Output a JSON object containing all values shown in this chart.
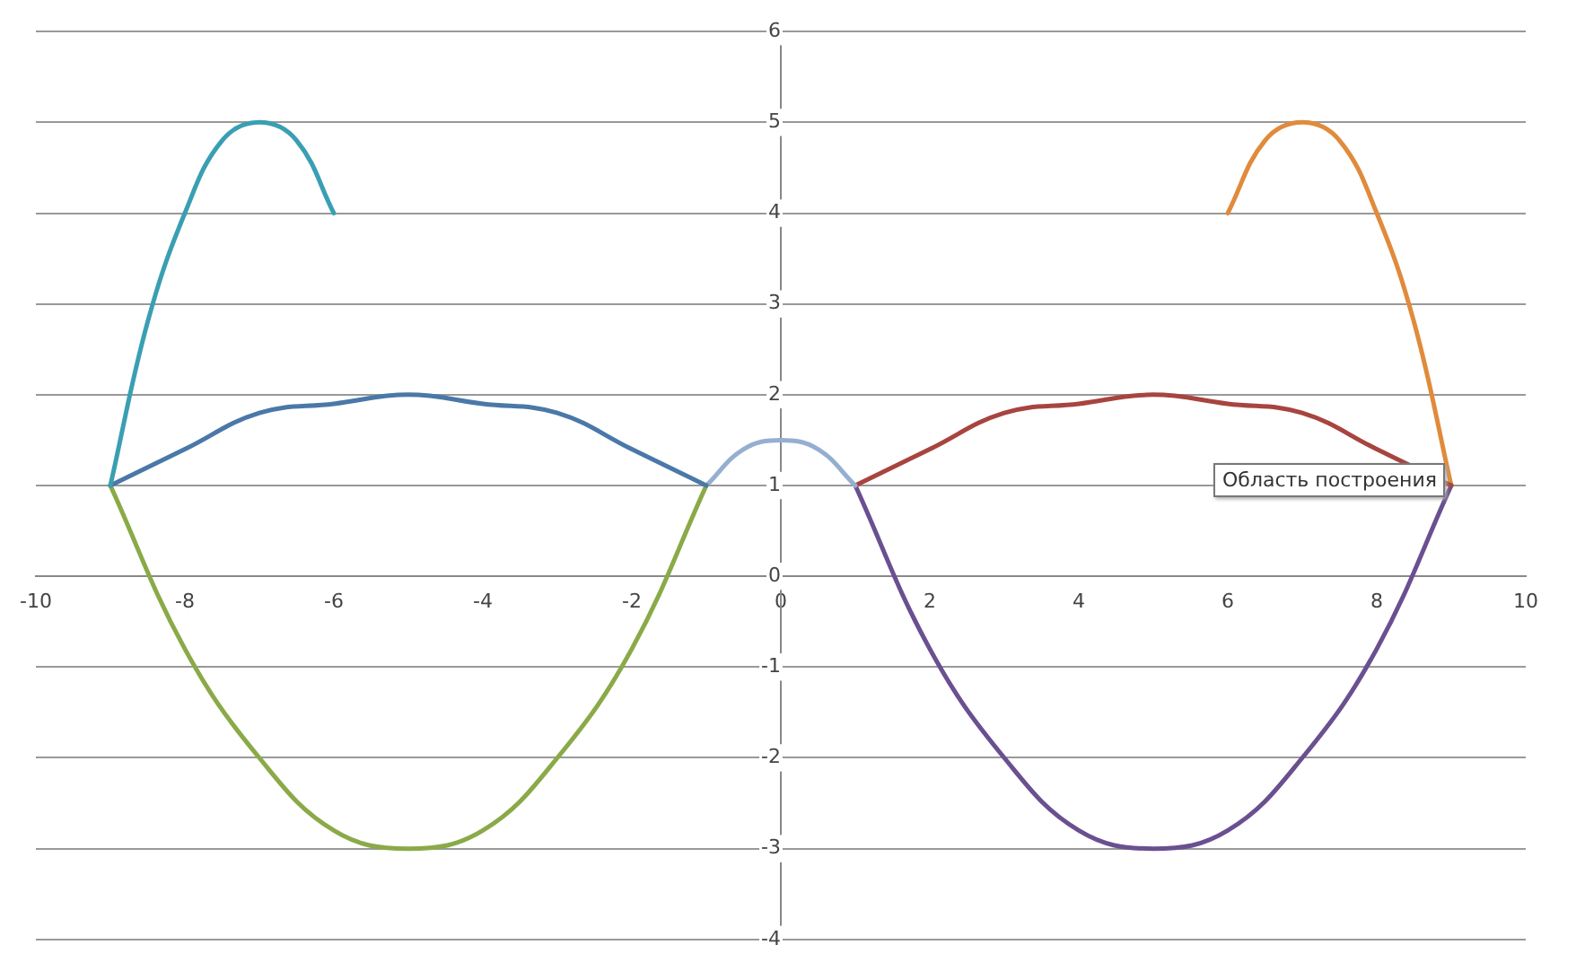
{
  "chart_data": {
    "type": "line",
    "xlim": [
      -10,
      10
    ],
    "xticks": [
      -10,
      -8,
      -6,
      -4,
      -2,
      0,
      2,
      4,
      6,
      8,
      10
    ],
    "ylim": [
      -4,
      6
    ],
    "yticks": [
      -4,
      -3,
      -2,
      -1,
      0,
      1,
      2,
      3,
      4,
      5,
      6
    ],
    "grid": "y",
    "marker": "none",
    "line_style": "solid",
    "annotations": [
      "Область построения"
    ],
    "series": [
      {
        "color": "#3a9fb2",
        "x": [
          -9,
          -8.5,
          -8,
          -7.5,
          -7,
          -6.5,
          -6
        ],
        "values": [
          1,
          2.8,
          4,
          4.8,
          5,
          4.8,
          4
        ]
      },
      {
        "color": "#4a78a8",
        "x": [
          -9,
          -8,
          -7,
          -6,
          -5,
          -4,
          -3,
          -2,
          -1
        ],
        "values": [
          1,
          1.4,
          1.8,
          1.9,
          2,
          1.9,
          1.8,
          1.4,
          1
        ]
      },
      {
        "color": "#8aaa48",
        "x": [
          -9,
          -8,
          -7,
          -6,
          -5,
          -4,
          -3,
          -2,
          -1
        ],
        "values": [
          1,
          -0.8,
          -2,
          -2.8,
          -3,
          -2.8,
          -2,
          -0.8,
          1
        ]
      },
      {
        "color": "#94afd0",
        "x": [
          -1,
          -0.5,
          0,
          0.5,
          1
        ],
        "values": [
          1,
          1.4,
          1.5,
          1.4,
          1
        ]
      },
      {
        "color": "#a8443f",
        "x": [
          1,
          2,
          3,
          4,
          5,
          6,
          7,
          8,
          9
        ],
        "values": [
          1,
          1.4,
          1.8,
          1.9,
          2,
          1.9,
          1.8,
          1.4,
          1
        ]
      },
      {
        "color": "#6a5090",
        "x": [
          1,
          2,
          3,
          4,
          5,
          6,
          7,
          8,
          9
        ],
        "values": [
          1,
          -0.8,
          -2,
          -2.8,
          -3,
          -2.8,
          -2,
          -0.8,
          1
        ]
      },
      {
        "color": "#e08b3c",
        "x": [
          6,
          6.5,
          7,
          7.5,
          8,
          8.5,
          9
        ],
        "values": [
          4,
          4.8,
          5,
          4.8,
          4,
          2.8,
          1
        ]
      }
    ]
  }
}
